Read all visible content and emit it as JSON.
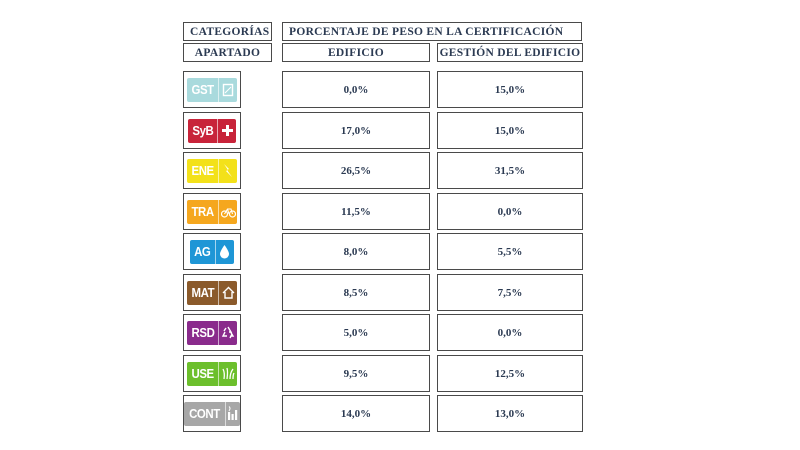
{
  "header": {
    "categorias": "CATEGORÍAS",
    "porcentaje": "PORCENTAJE DE PESO EN LA CERTIFICACIÓN",
    "apartado": "APARTADO",
    "edificio": "EDIFICIO",
    "gestion": "GESTIÓN DEL EDIFICIO"
  },
  "rows": [
    {
      "code": "GST",
      "color": "#a9dadd",
      "icon": "document-icon",
      "edificio": "0,0%",
      "gestion": "15,0%"
    },
    {
      "code": "SyB",
      "color": "#c8243a",
      "icon": "plus-icon",
      "edificio": "17,0%",
      "gestion": "15,0%"
    },
    {
      "code": "ENE",
      "color": "#f3e11a",
      "icon": "lightning-icon",
      "edificio": "26,5%",
      "gestion": "31,5%"
    },
    {
      "code": "TRA",
      "color": "#f5a71e",
      "icon": "bicycle-icon",
      "edificio": "11,5%",
      "gestion": "0,0%"
    },
    {
      "code": "AG",
      "color": "#1e96d6",
      "icon": "water-drop-icon",
      "edificio": "8,0%",
      "gestion": "5,5%"
    },
    {
      "code": "MAT",
      "color": "#8b5a2b",
      "icon": "house-icon",
      "edificio": "8,5%",
      "gestion": "7,5%"
    },
    {
      "code": "RSD",
      "color": "#8a2b8c",
      "icon": "recycle-icon",
      "edificio": "5,0%",
      "gestion": "0,0%"
    },
    {
      "code": "USE",
      "color": "#6cbf2c",
      "icon": "grass-icon",
      "edificio": "9,5%",
      "gestion": "12,5%"
    },
    {
      "code": "CONT",
      "color": "#a7a7a7",
      "icon": "chimney-icon",
      "edificio": "14,0%",
      "gestion": "13,0%"
    }
  ]
}
